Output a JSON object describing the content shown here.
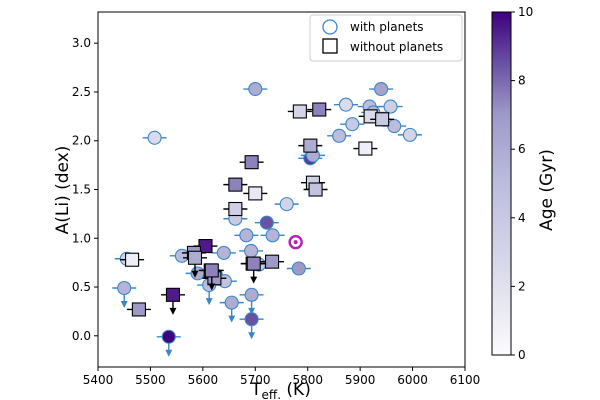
{
  "chart_data": {
    "type": "scatter",
    "xlabel": "T",
    "xlabel_sub": "eff.",
    "xlabel_unit": " (K)",
    "ylabel": "A(Li) (dex)",
    "xlim": [
      5400,
      6100
    ],
    "ylim": [
      -0.32,
      3.32
    ],
    "x_ticks": [
      5400,
      5500,
      5600,
      5700,
      5800,
      5900,
      6000,
      6100
    ],
    "y_ticks": [
      0.0,
      0.5,
      1.0,
      1.5,
      2.0,
      2.5,
      3.0
    ],
    "x_tick_labels": [
      "5400",
      "5500",
      "5600",
      "5700",
      "5800",
      "5900",
      "6000",
      "6100"
    ],
    "y_tick_labels": [
      "0.0",
      "0.5",
      "1.0",
      "1.5",
      "2.0",
      "2.5",
      "3.0"
    ],
    "colorbar": {
      "label": "Age (Gyr)",
      "min": 0,
      "max": 10,
      "ticks": [
        0,
        2,
        4,
        6,
        8,
        10
      ],
      "tick_labels": [
        "0",
        "2",
        "4",
        "6",
        "8",
        "10"
      ],
      "color_low": "#fcfbfd",
      "color_high": "#3f007d"
    },
    "legend": {
      "position": "top-right",
      "entries": [
        {
          "marker": "circle",
          "label": "with planets"
        },
        {
          "marker": "square",
          "label": "without planets"
        }
      ]
    },
    "sun": {
      "x": 5777,
      "y": 0.96,
      "color": "#b41fb4"
    },
    "series": [
      {
        "name": "with planets",
        "marker": "circle",
        "errbar_color": "#3a87c8",
        "edge_color": "#3a87c8",
        "points": [
          {
            "x": 5508,
            "y": 2.03,
            "age": 2.5,
            "ul": false
          },
          {
            "x": 5700,
            "y": 2.53,
            "age": 6.0,
            "ul": false
          },
          {
            "x": 5760,
            "y": 1.35,
            "age": 3.0,
            "ul": false
          },
          {
            "x": 5805,
            "y": 1.82,
            "age": 9.0,
            "ul": false
          },
          {
            "x": 5810,
            "y": 1.85,
            "age": 6.0,
            "ul": false
          },
          {
            "x": 5860,
            "y": 2.05,
            "age": 5.0,
            "ul": false
          },
          {
            "x": 5873,
            "y": 2.37,
            "age": 2.5,
            "ul": false
          },
          {
            "x": 5885,
            "y": 2.17,
            "age": 4.0,
            "ul": false
          },
          {
            "x": 5918,
            "y": 2.35,
            "age": 5.0,
            "ul": false
          },
          {
            "x": 5925,
            "y": 2.29,
            "age": 5.5,
            "ul": false
          },
          {
            "x": 5940,
            "y": 2.53,
            "age": 6.5,
            "ul": false
          },
          {
            "x": 5958,
            "y": 2.35,
            "age": 3.5,
            "ul": false
          },
          {
            "x": 5965,
            "y": 2.15,
            "age": 5.0,
            "ul": false
          },
          {
            "x": 5995,
            "y": 2.06,
            "age": 3.0,
            "ul": false
          },
          {
            "x": 5455,
            "y": 0.79,
            "age": 3.0,
            "ul": false
          },
          {
            "x": 5560,
            "y": 0.82,
            "age": 5.0,
            "ul": false
          },
          {
            "x": 5662,
            "y": 1.2,
            "age": 4.0,
            "ul": false
          },
          {
            "x": 5683,
            "y": 1.03,
            "age": 5.5,
            "ul": false
          },
          {
            "x": 5722,
            "y": 1.16,
            "age": 8.5,
            "ul": false
          },
          {
            "x": 5692,
            "y": 0.87,
            "age": 5.5,
            "ul": false
          },
          {
            "x": 5733,
            "y": 1.03,
            "age": 5.5,
            "ul": false
          },
          {
            "x": 5640,
            "y": 0.85,
            "age": 5.5,
            "ul": false
          },
          {
            "x": 5707,
            "y": 0.73,
            "age": 4.0,
            "ul": false
          },
          {
            "x": 5783,
            "y": 0.69,
            "age": 7.0,
            "ul": false
          },
          {
            "x": 5590,
            "y": 0.64,
            "age": 6.0,
            "ul": false
          },
          {
            "x": 5625,
            "y": 0.62,
            "age": 5.0,
            "ul": false
          },
          {
            "x": 5642,
            "y": 0.56,
            "age": 4.5,
            "ul": false
          },
          {
            "x": 5450,
            "y": 0.49,
            "age": 5.5,
            "ul": true
          },
          {
            "x": 5612,
            "y": 0.52,
            "age": 5.0,
            "ul": true
          },
          {
            "x": 5655,
            "y": 0.34,
            "age": 6.0,
            "ul": true
          },
          {
            "x": 5693,
            "y": 0.42,
            "age": 6.0,
            "ul": true
          },
          {
            "x": 5693,
            "y": 0.17,
            "age": 8.5,
            "ul": true
          },
          {
            "x": 5535,
            "y": -0.01,
            "age": 10.0,
            "ul": true
          }
        ]
      },
      {
        "name": "without planets",
        "marker": "square",
        "errbar_color": "#000000",
        "edge_color": "#000000",
        "points": [
          {
            "x": 5693,
            "y": 1.78,
            "age": 7.5,
            "ul": false
          },
          {
            "x": 5785,
            "y": 2.3,
            "age": 3.0,
            "ul": false
          },
          {
            "x": 5822,
            "y": 2.32,
            "age": 7.5,
            "ul": false
          },
          {
            "x": 5805,
            "y": 1.95,
            "age": 6.0,
            "ul": false
          },
          {
            "x": 5810,
            "y": 1.57,
            "age": 3.5,
            "ul": false
          },
          {
            "x": 5815,
            "y": 1.5,
            "age": 4.5,
            "ul": false
          },
          {
            "x": 5662,
            "y": 1.55,
            "age": 7.5,
            "ul": false
          },
          {
            "x": 5700,
            "y": 1.46,
            "age": 1.5,
            "ul": false
          },
          {
            "x": 5662,
            "y": 1.3,
            "age": 3.5,
            "ul": false
          },
          {
            "x": 5910,
            "y": 1.92,
            "age": 1.0,
            "ul": false
          },
          {
            "x": 5920,
            "y": 2.25,
            "age": 2.5,
            "ul": false
          },
          {
            "x": 5942,
            "y": 2.22,
            "age": 4.0,
            "ul": false
          },
          {
            "x": 5605,
            "y": 0.92,
            "age": 9.5,
            "ul": false
          },
          {
            "x": 5583,
            "y": 0.85,
            "age": 7.0,
            "ul": false
          },
          {
            "x": 5465,
            "y": 0.78,
            "age": 1.0,
            "ul": false
          },
          {
            "x": 5695,
            "y": 0.74,
            "age": 6.0,
            "ul": false
          },
          {
            "x": 5732,
            "y": 0.76,
            "age": 7.0,
            "ul": false
          },
          {
            "x": 5615,
            "y": 0.67,
            "age": 8.0,
            "ul": false
          },
          {
            "x": 5622,
            "y": 0.59,
            "age": 7.0,
            "ul": false
          },
          {
            "x": 5478,
            "y": 0.27,
            "age": 7.0,
            "ul": false
          },
          {
            "x": 5543,
            "y": 0.42,
            "age": 9.5,
            "ul": true
          },
          {
            "x": 5585,
            "y": 0.8,
            "age": 6.0,
            "ul": true
          },
          {
            "x": 5617,
            "y": 0.67,
            "age": 7.5,
            "ul": true
          },
          {
            "x": 5697,
            "y": 0.74,
            "age": 7.5,
            "ul": true
          }
        ]
      }
    ]
  }
}
